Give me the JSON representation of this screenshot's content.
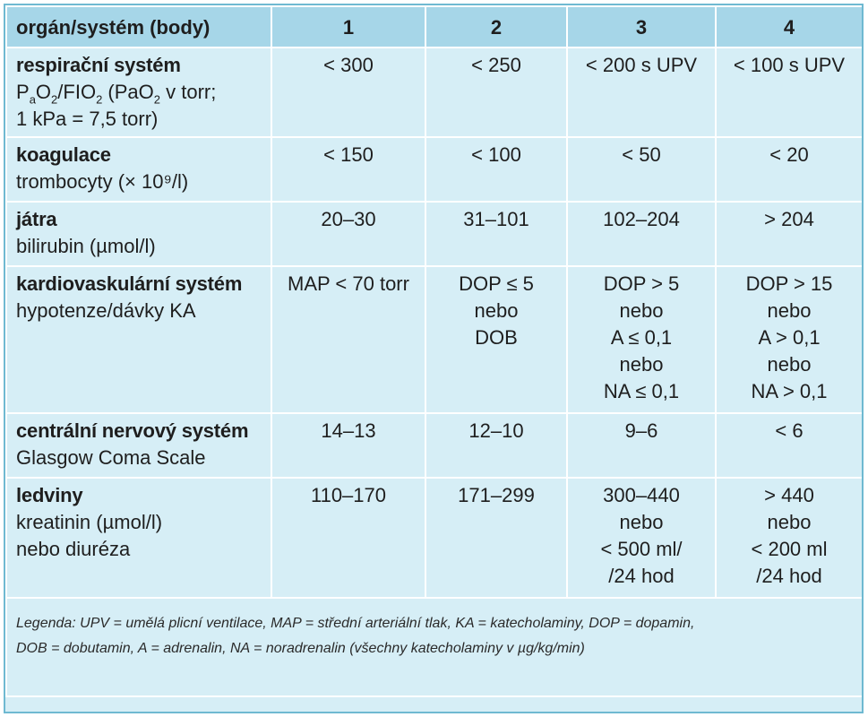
{
  "header": {
    "organ": "orgán/systém (body)",
    "cols": [
      "1",
      "2",
      "3",
      "4"
    ]
  },
  "rows": [
    {
      "title": "respirační systém",
      "sub": [],
      "values": [
        [
          "< 300"
        ],
        [
          "< 250"
        ],
        [
          "< 200 s UPV"
        ],
        [
          "< 100 s UPV"
        ]
      ]
    },
    {
      "title": "koagulace",
      "sub": [
        "trombocyty (× 10⁹/l)"
      ],
      "values": [
        [
          "< 150"
        ],
        [
          "< 100"
        ],
        [
          "< 50"
        ],
        [
          "< 20"
        ]
      ]
    },
    {
      "title": "játra",
      "sub": [
        "bilirubin (µmol/l)"
      ],
      "values": [
        [
          "20–30"
        ],
        [
          "31–101"
        ],
        [
          "102–204"
        ],
        [
          "> 204"
        ]
      ]
    },
    {
      "title": "kardiovaskulární systém",
      "sub": [
        "hypotenze/dávky KA"
      ],
      "values": [
        [
          "MAP < 70 torr"
        ],
        [
          "DOP ≤ 5",
          "nebo",
          "DOB"
        ],
        [
          "DOP > 5",
          "nebo",
          "A ≤ 0,1",
          "nebo",
          "NA ≤ 0,1"
        ],
        [
          "DOP > 15",
          "nebo",
          "A > 0,1",
          "nebo",
          "NA > 0,1"
        ]
      ]
    },
    {
      "title": "centrální nervový systém",
      "sub": [
        "Glasgow Coma Scale"
      ],
      "values": [
        [
          "14–13"
        ],
        [
          "12–10"
        ],
        [
          "9–6"
        ],
        [
          "< 6"
        ]
      ]
    },
    {
      "title": "ledviny",
      "sub": [
        "kreatinin (µmol/l)",
        "nebo diuréza"
      ],
      "values": [
        [
          "110–170"
        ],
        [
          "171–299"
        ],
        [
          "300–440",
          "nebo",
          "< 500 ml/",
          "/24 hod"
        ],
        [
          "> 440",
          "nebo",
          "< 200 ml",
          "/24 hod"
        ]
      ]
    }
  ],
  "resp_sub": {
    "p": "P",
    "a": "a",
    "o2": "O",
    "two": "2",
    "fio": "/FIO",
    "two2": "2",
    "pao_open": " (PaO",
    "two3": "2",
    "rest": " v torr;",
    "line2": "1 kPa = 7,5 torr)"
  },
  "legend": {
    "line1": "Legenda: UPV = umělá plicní ventilace, MAP = střední arteriální tlak, KA = katecholaminy, DOP = dopamin,",
    "line2": "DOB = dobutamin, A = adrenalin, NA = noradrenalin (všechny katecholaminy v µg/kg/min)"
  }
}
